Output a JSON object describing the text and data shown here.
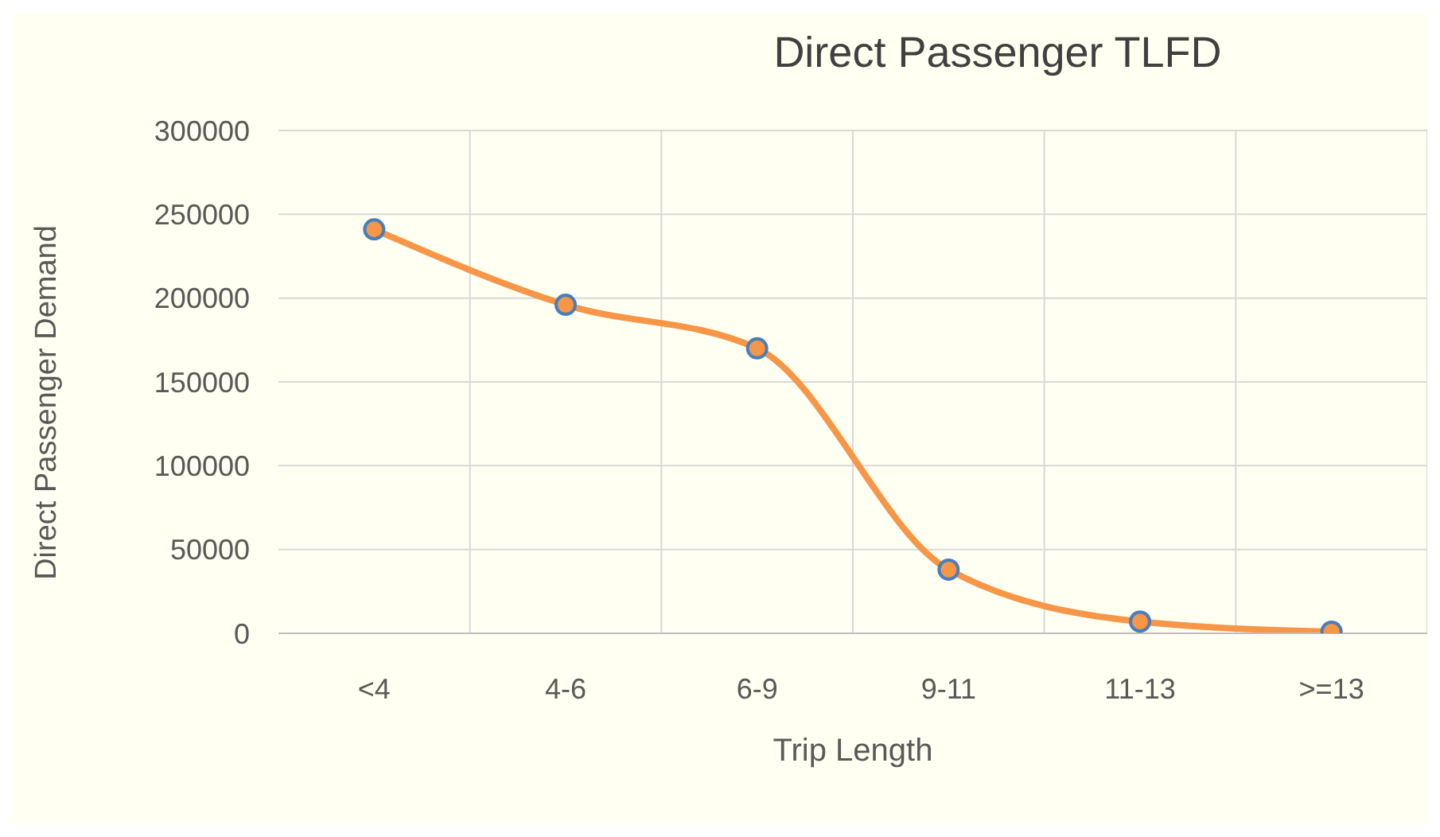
{
  "chart_data": {
    "type": "line",
    "title": "Direct Passenger TLFD",
    "xlabel": "Trip Length",
    "ylabel": "Direct Passenger Demand",
    "categories": [
      "<4",
      "4-6",
      "6-9",
      "9-11",
      "11-13",
      ">=13"
    ],
    "series": [
      {
        "color": "#f79646",
        "values": [
          241000,
          196000,
          170000,
          38000,
          7000,
          1000
        ]
      }
    ],
    "ylim": [
      0,
      300000
    ],
    "yticks": [
      0,
      50000,
      100000,
      150000,
      200000,
      250000,
      300000
    ],
    "grid": true,
    "marker": "circle",
    "legend": false
  }
}
